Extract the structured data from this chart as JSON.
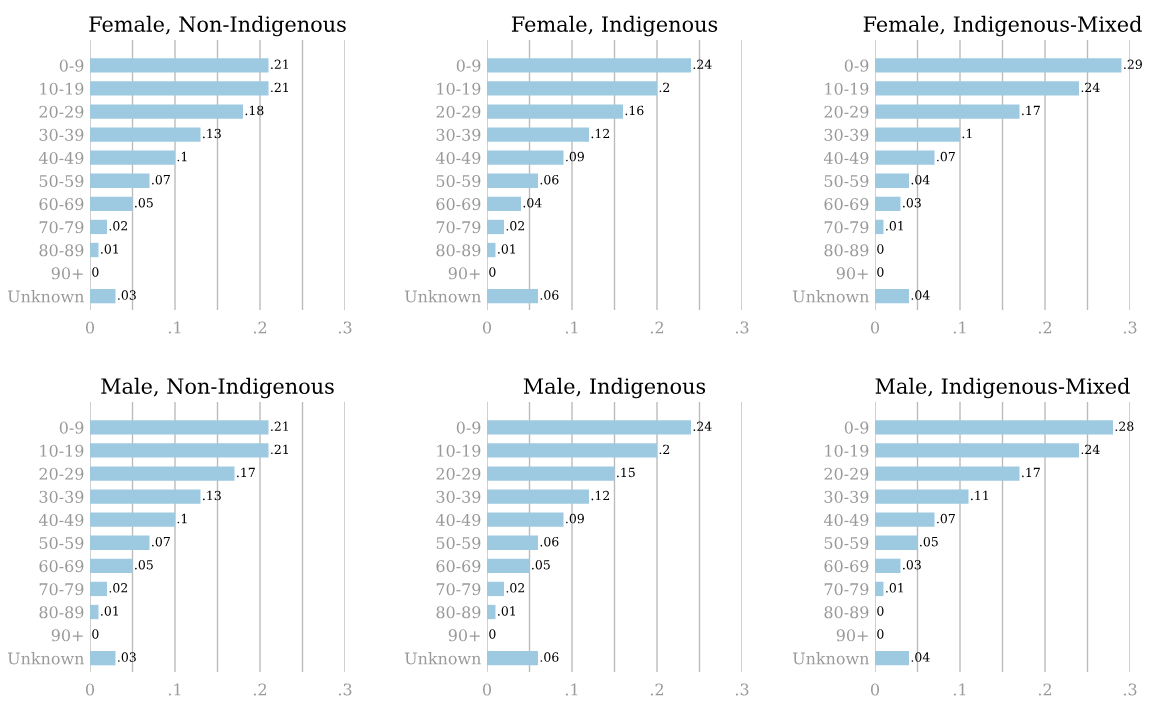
{
  "chart_data": [
    {
      "type": "bar",
      "orientation": "horizontal",
      "title": "Female, Non-Indigenous",
      "categories": [
        "0-9",
        "10-19",
        "20-29",
        "30-39",
        "40-49",
        "50-59",
        "60-69",
        "70-79",
        "80-89",
        "90+",
        "Unknown"
      ],
      "values": [
        0.21,
        0.21,
        0.18,
        0.13,
        0.1,
        0.07,
        0.05,
        0.02,
        0.01,
        0,
        0.03
      ],
      "value_labels": [
        ".21",
        ".21",
        ".18",
        ".13",
        ".1",
        ".07",
        ".05",
        ".02",
        ".01",
        "0",
        ".03"
      ],
      "color": "#9ecae1",
      "xlim": [
        0,
        0.3
      ],
      "xticks": [
        0,
        {
          "value": 0.05,
          "label": null
        },
        {
          "value": 0.1,
          "label": ".1"
        },
        {
          "value": 0.15,
          "label": null
        },
        {
          "value": 0.2,
          "label": ".2"
        },
        {
          "value": 0.25,
          "label": null
        },
        {
          "value": 0.3,
          "label": ".3"
        }
      ],
      "grid": "x"
    },
    {
      "type": "bar",
      "orientation": "horizontal",
      "title": "Female, Indigenous",
      "categories": [
        "0-9",
        "10-19",
        "20-29",
        "30-39",
        "40-49",
        "50-59",
        "60-69",
        "70-79",
        "80-89",
        "90+",
        "Unknown"
      ],
      "values": [
        0.24,
        0.2,
        0.16,
        0.12,
        0.09,
        0.06,
        0.04,
        0.02,
        0.01,
        0,
        0.06
      ],
      "value_labels": [
        ".24",
        ".2",
        ".16",
        ".12",
        ".09",
        ".06",
        ".04",
        ".02",
        ".01",
        "0",
        ".06"
      ],
      "color": "#9ecae1",
      "xlim": [
        0,
        0.3
      ],
      "xticks": [
        0,
        {
          "value": 0.05,
          "label": null
        },
        {
          "value": 0.1,
          "label": ".1"
        },
        {
          "value": 0.15,
          "label": null
        },
        {
          "value": 0.2,
          "label": ".2"
        },
        {
          "value": 0.25,
          "label": null
        },
        {
          "value": 0.3,
          "label": ".3"
        }
      ],
      "grid": "x"
    },
    {
      "type": "bar",
      "orientation": "horizontal",
      "title": "Female, Indigenous-Mixed",
      "categories": [
        "0-9",
        "10-19",
        "20-29",
        "30-39",
        "40-49",
        "50-59",
        "60-69",
        "70-79",
        "80-89",
        "90+",
        "Unknown"
      ],
      "values": [
        0.29,
        0.24,
        0.17,
        0.1,
        0.07,
        0.04,
        0.03,
        0.01,
        0,
        0,
        0.04
      ],
      "value_labels": [
        ".29",
        ".24",
        ".17",
        ".1",
        ".07",
        ".04",
        ".03",
        ".01",
        "0",
        "0",
        ".04"
      ],
      "color": "#9ecae1",
      "xlim": [
        0,
        0.3
      ],
      "xticks": [
        0,
        {
          "value": 0.05,
          "label": null
        },
        {
          "value": 0.1,
          "label": ".1"
        },
        {
          "value": 0.15,
          "label": null
        },
        {
          "value": 0.2,
          "label": ".2"
        },
        {
          "value": 0.25,
          "label": null
        },
        {
          "value": 0.3,
          "label": ".3"
        }
      ],
      "grid": "x"
    },
    {
      "type": "bar",
      "orientation": "horizontal",
      "title": "Male, Non-Indigenous",
      "categories": [
        "0-9",
        "10-19",
        "20-29",
        "30-39",
        "40-49",
        "50-59",
        "60-69",
        "70-79",
        "80-89",
        "90+",
        "Unknown"
      ],
      "values": [
        0.21,
        0.21,
        0.17,
        0.13,
        0.1,
        0.07,
        0.05,
        0.02,
        0.01,
        0,
        0.03
      ],
      "value_labels": [
        ".21",
        ".21",
        ".17",
        ".13",
        ".1",
        ".07",
        ".05",
        ".02",
        ".01",
        "0",
        ".03"
      ],
      "color": "#9ecae1",
      "xlim": [
        0,
        0.3
      ],
      "xticks": [
        0,
        {
          "value": 0.05,
          "label": null
        },
        {
          "value": 0.1,
          "label": ".1"
        },
        {
          "value": 0.15,
          "label": null
        },
        {
          "value": 0.2,
          "label": ".2"
        },
        {
          "value": 0.25,
          "label": null
        },
        {
          "value": 0.3,
          "label": ".3"
        }
      ],
      "grid": "x"
    },
    {
      "type": "bar",
      "orientation": "horizontal",
      "title": "Male, Indigenous",
      "categories": [
        "0-9",
        "10-19",
        "20-29",
        "30-39",
        "40-49",
        "50-59",
        "60-69",
        "70-79",
        "80-89",
        "90+",
        "Unknown"
      ],
      "values": [
        0.24,
        0.2,
        0.15,
        0.12,
        0.09,
        0.06,
        0.05,
        0.02,
        0.01,
        0,
        0.06
      ],
      "value_labels": [
        ".24",
        ".2",
        ".15",
        ".12",
        ".09",
        ".06",
        ".05",
        ".02",
        ".01",
        "0",
        ".06"
      ],
      "color": "#9ecae1",
      "xlim": [
        0,
        0.3
      ],
      "xticks": [
        0,
        {
          "value": 0.05,
          "label": null
        },
        {
          "value": 0.1,
          "label": ".1"
        },
        {
          "value": 0.15,
          "label": null
        },
        {
          "value": 0.2,
          "label": ".2"
        },
        {
          "value": 0.25,
          "label": null
        },
        {
          "value": 0.3,
          "label": ".3"
        }
      ],
      "grid": "x"
    },
    {
      "type": "bar",
      "orientation": "horizontal",
      "title": "Male, Indigenous-Mixed",
      "categories": [
        "0-9",
        "10-19",
        "20-29",
        "30-39",
        "40-49",
        "50-59",
        "60-69",
        "70-79",
        "80-89",
        "90+",
        "Unknown"
      ],
      "values": [
        0.28,
        0.24,
        0.17,
        0.11,
        0.07,
        0.05,
        0.03,
        0.01,
        0,
        0,
        0.04
      ],
      "value_labels": [
        ".28",
        ".24",
        ".17",
        ".11",
        ".07",
        ".05",
        ".03",
        ".01",
        "0",
        "0",
        ".04"
      ],
      "color": "#9ecae1",
      "xlim": [
        0,
        0.3
      ],
      "xticks": [
        0,
        {
          "value": 0.05,
          "label": null
        },
        {
          "value": 0.1,
          "label": ".1"
        },
        {
          "value": 0.15,
          "label": null
        },
        {
          "value": 0.2,
          "label": ".2"
        },
        {
          "value": 0.25,
          "label": null
        },
        {
          "value": 0.3,
          "label": ".3"
        }
      ],
      "grid": "x"
    }
  ]
}
